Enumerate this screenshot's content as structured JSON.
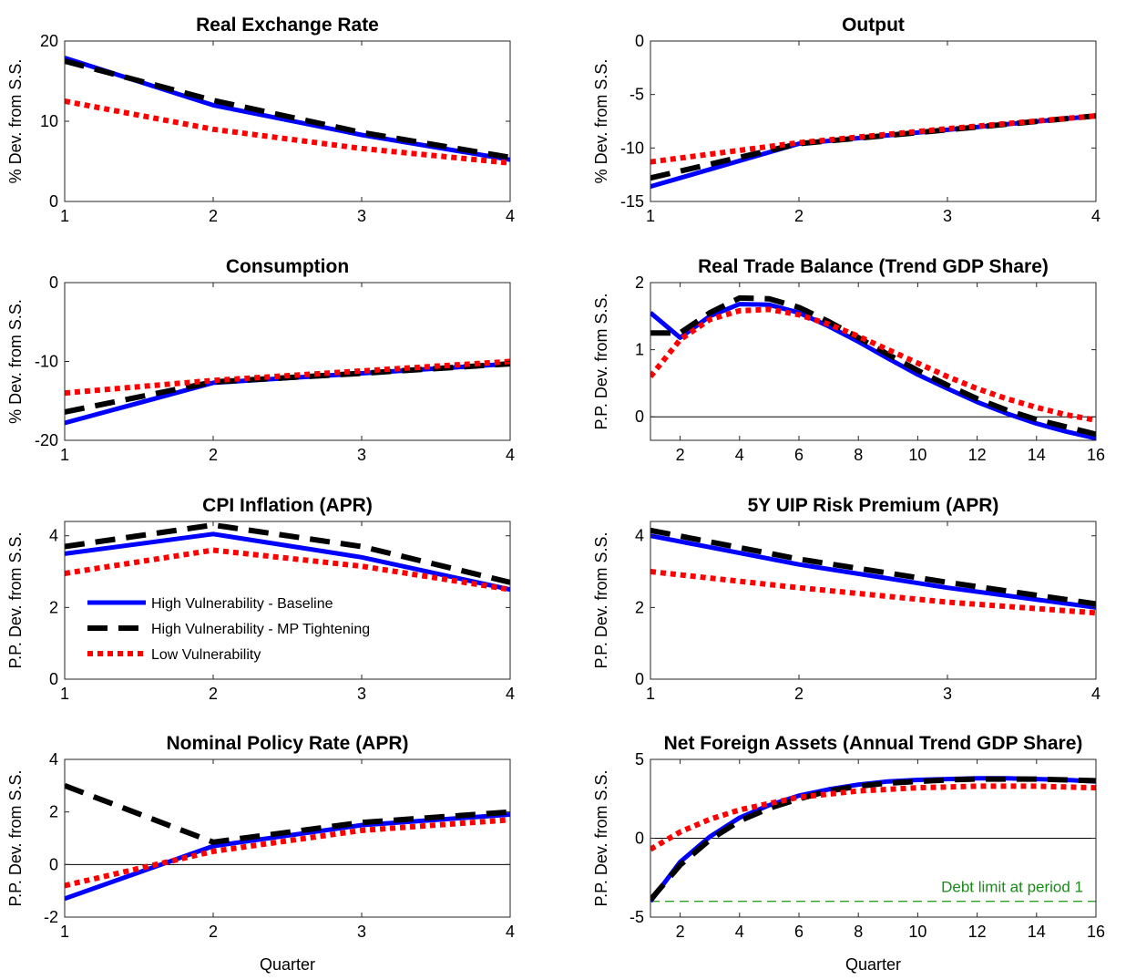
{
  "colors": {
    "baseline": "#0000ff",
    "tightening": "#000000",
    "low": "#ff0000",
    "zero_line": "#000000",
    "debt_limit": "#33a02c",
    "debt_limit_text": "#1a8a1a"
  },
  "legend": {
    "entries": [
      {
        "label": "High Vulnerability - Baseline",
        "style": "solid",
        "color": "#0000ff"
      },
      {
        "label": "High Vulnerability - MP Tightening",
        "style": "dashed",
        "color": "#000000"
      },
      {
        "label": "Low Vulnerability",
        "style": "dotted",
        "color": "#ff0000"
      }
    ]
  },
  "chart_data": [
    {
      "type": "line",
      "title": "Real Exchange Rate",
      "ylabel": "% Dev. from S.S.",
      "xlabel": "",
      "xlim": [
        1,
        4
      ],
      "ylim": [
        0,
        20
      ],
      "xticks": [
        1,
        2,
        3,
        4
      ],
      "yticks": [
        0,
        10,
        20
      ],
      "zero_line": false,
      "series": [
        {
          "name": "High Vulnerability - Baseline",
          "x": [
            1,
            2,
            3,
            4
          ],
          "y": [
            17.9,
            12.0,
            8.3,
            5.2
          ]
        },
        {
          "name": "High Vulnerability - MP Tightening",
          "x": [
            1,
            2,
            3,
            4
          ],
          "y": [
            17.5,
            12.6,
            8.6,
            5.5
          ]
        },
        {
          "name": "Low Vulnerability",
          "x": [
            1,
            2,
            3,
            4
          ],
          "y": [
            12.5,
            9.0,
            6.6,
            4.8
          ]
        }
      ]
    },
    {
      "type": "line",
      "title": "Output",
      "ylabel": "% Dev. from S.S.",
      "xlabel": "",
      "xlim": [
        1,
        4
      ],
      "ylim": [
        -15,
        0
      ],
      "xticks": [
        1,
        2,
        3,
        4
      ],
      "yticks": [
        -15,
        -10,
        -5,
        0
      ],
      "zero_line": false,
      "series": [
        {
          "name": "High Vulnerability - Baseline",
          "x": [
            1,
            2,
            3,
            4
          ],
          "y": [
            -13.6,
            -9.6,
            -8.3,
            -7.0
          ]
        },
        {
          "name": "High Vulnerability - MP Tightening",
          "x": [
            1,
            2,
            3,
            4
          ],
          "y": [
            -12.8,
            -9.6,
            -8.3,
            -7.0
          ]
        },
        {
          "name": "Low Vulnerability",
          "x": [
            1,
            2,
            3,
            4
          ],
          "y": [
            -11.3,
            -9.5,
            -8.2,
            -7.0
          ]
        }
      ]
    },
    {
      "type": "line",
      "title": "Consumption",
      "ylabel": "% Dev. from S.S.",
      "xlabel": "",
      "xlim": [
        1,
        4
      ],
      "ylim": [
        -20,
        0
      ],
      "xticks": [
        1,
        2,
        3,
        4
      ],
      "yticks": [
        -20,
        -10,
        0
      ],
      "zero_line": false,
      "series": [
        {
          "name": "High Vulnerability - Baseline",
          "x": [
            1,
            2,
            3,
            4
          ],
          "y": [
            -17.8,
            -12.7,
            -11.5,
            -10.3
          ]
        },
        {
          "name": "High Vulnerability - MP Tightening",
          "x": [
            1,
            2,
            3,
            4
          ],
          "y": [
            -16.4,
            -12.6,
            -11.5,
            -10.3
          ]
        },
        {
          "name": "Low Vulnerability",
          "x": [
            1,
            2,
            3,
            4
          ],
          "y": [
            -14.0,
            -12.4,
            -11.2,
            -10.0
          ]
        }
      ]
    },
    {
      "type": "line",
      "title": "Real Trade Balance (Trend GDP Share)",
      "ylabel": "P.P. Dev. from S.S.",
      "xlabel": "",
      "xlim": [
        1,
        16
      ],
      "ylim": [
        -0.35,
        2
      ],
      "xticks": [
        2,
        4,
        6,
        8,
        10,
        12,
        14,
        16
      ],
      "yticks": [
        0,
        1,
        2
      ],
      "zero_line": true,
      "series": [
        {
          "name": "High Vulnerability - Baseline",
          "x": [
            1,
            2,
            3,
            4,
            5,
            6,
            7,
            8,
            9,
            10,
            11,
            12,
            13,
            14,
            15,
            16
          ],
          "y": [
            1.55,
            1.18,
            1.5,
            1.68,
            1.67,
            1.55,
            1.35,
            1.12,
            0.87,
            0.63,
            0.42,
            0.22,
            0.05,
            -0.1,
            -0.22,
            -0.32
          ]
        },
        {
          "name": "High Vulnerability - MP Tightening",
          "x": [
            1,
            2,
            3,
            4,
            5,
            6,
            7,
            8,
            9,
            10,
            11,
            12,
            13,
            14,
            15,
            16
          ],
          "y": [
            1.25,
            1.25,
            1.55,
            1.77,
            1.76,
            1.63,
            1.42,
            1.18,
            0.93,
            0.69,
            0.47,
            0.27,
            0.1,
            -0.04,
            -0.15,
            -0.26
          ]
        },
        {
          "name": "Low Vulnerability",
          "x": [
            1,
            2,
            3,
            4,
            5,
            6,
            7,
            8,
            9,
            10,
            11,
            12,
            13,
            14,
            15,
            16
          ],
          "y": [
            0.6,
            1.15,
            1.45,
            1.58,
            1.6,
            1.52,
            1.38,
            1.2,
            1.0,
            0.8,
            0.6,
            0.42,
            0.27,
            0.14,
            0.03,
            -0.05
          ]
        }
      ]
    },
    {
      "type": "line",
      "title": "CPI Inflation (APR)",
      "ylabel": "P.P. Dev. from S.S.",
      "xlabel": "",
      "xlim": [
        1,
        4
      ],
      "ylim": [
        0,
        4.4
      ],
      "xticks": [
        1,
        2,
        3,
        4
      ],
      "yticks": [
        0,
        2,
        4
      ],
      "zero_line": false,
      "series": [
        {
          "name": "High Vulnerability - Baseline",
          "x": [
            1,
            2,
            3,
            4
          ],
          "y": [
            3.5,
            4.05,
            3.4,
            2.5
          ]
        },
        {
          "name": "High Vulnerability - MP Tightening",
          "x": [
            1,
            2,
            3,
            4
          ],
          "y": [
            3.7,
            4.3,
            3.7,
            2.7
          ]
        },
        {
          "name": "Low Vulnerability",
          "x": [
            1,
            2,
            3,
            4
          ],
          "y": [
            2.95,
            3.6,
            3.15,
            2.5
          ]
        }
      ]
    },
    {
      "type": "line",
      "title": "5Y UIP Risk Premium (APR)",
      "ylabel": "P.P. Dev. from S.S.",
      "xlabel": "",
      "xlim": [
        1,
        4
      ],
      "ylim": [
        0,
        4.4
      ],
      "xticks": [
        1,
        2,
        3,
        4
      ],
      "yticks": [
        0,
        2,
        4
      ],
      "zero_line": false,
      "series": [
        {
          "name": "High Vulnerability - Baseline",
          "x": [
            1,
            2,
            3,
            4
          ],
          "y": [
            4.0,
            3.2,
            2.55,
            2.0
          ]
        },
        {
          "name": "High Vulnerability - MP Tightening",
          "x": [
            1,
            2,
            3,
            4
          ],
          "y": [
            4.15,
            3.35,
            2.7,
            2.1
          ]
        },
        {
          "name": "Low Vulnerability",
          "x": [
            1,
            2,
            3,
            4
          ],
          "y": [
            3.0,
            2.55,
            2.15,
            1.85
          ]
        }
      ]
    },
    {
      "type": "line",
      "title": "Nominal Policy Rate (APR)",
      "ylabel": "P.P. Dev. from S.S.",
      "xlabel": "Quarter",
      "xlim": [
        1,
        4
      ],
      "ylim": [
        -2,
        4
      ],
      "xticks": [
        1,
        2,
        3,
        4
      ],
      "yticks": [
        -2,
        0,
        2,
        4
      ],
      "zero_line": true,
      "series": [
        {
          "name": "High Vulnerability - Baseline",
          "x": [
            1,
            2,
            3,
            4
          ],
          "y": [
            -1.3,
            0.7,
            1.5,
            1.9
          ]
        },
        {
          "name": "High Vulnerability - MP Tightening",
          "x": [
            1,
            2,
            3,
            4
          ],
          "y": [
            3.0,
            0.85,
            1.6,
            2.0
          ]
        },
        {
          "name": "Low Vulnerability",
          "x": [
            1,
            2,
            3,
            4
          ],
          "y": [
            -0.8,
            0.5,
            1.3,
            1.7
          ]
        }
      ]
    },
    {
      "type": "line",
      "title": "Net Foreign Assets (Annual Trend GDP Share)",
      "ylabel": "P.P. Dev. from S.S.",
      "xlabel": "Quarter",
      "xlim": [
        1,
        16
      ],
      "ylim": [
        -5,
        5
      ],
      "xticks": [
        2,
        4,
        6,
        8,
        10,
        12,
        14,
        16
      ],
      "yticks": [
        -5,
        0,
        5
      ],
      "zero_line": true,
      "debt_limit": {
        "y": -4.0,
        "label": "Debt limit at period 1"
      },
      "series": [
        {
          "name": "High Vulnerability - Baseline",
          "x": [
            1,
            2,
            3,
            4,
            5,
            6,
            7,
            8,
            9,
            10,
            11,
            12,
            13,
            14,
            15,
            16
          ],
          "y": [
            -4.0,
            -1.5,
            0.1,
            1.3,
            2.1,
            2.7,
            3.1,
            3.4,
            3.6,
            3.7,
            3.75,
            3.8,
            3.8,
            3.75,
            3.7,
            3.6
          ]
        },
        {
          "name": "High Vulnerability - MP Tightening",
          "x": [
            1,
            2,
            3,
            4,
            5,
            6,
            7,
            8,
            9,
            10,
            11,
            12,
            13,
            14,
            15,
            16
          ],
          "y": [
            -3.9,
            -1.7,
            -0.1,
            1.1,
            1.9,
            2.5,
            3.0,
            3.3,
            3.5,
            3.6,
            3.7,
            3.75,
            3.75,
            3.75,
            3.7,
            3.65
          ]
        },
        {
          "name": "Low Vulnerability",
          "x": [
            1,
            2,
            3,
            4,
            5,
            6,
            7,
            8,
            9,
            10,
            11,
            12,
            13,
            14,
            15,
            16
          ],
          "y": [
            -0.7,
            0.4,
            1.2,
            1.8,
            2.2,
            2.6,
            2.8,
            3.0,
            3.1,
            3.2,
            3.25,
            3.3,
            3.3,
            3.3,
            3.25,
            3.2
          ]
        }
      ]
    }
  ]
}
